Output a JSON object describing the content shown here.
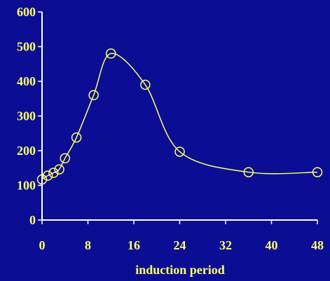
{
  "chart_data": {
    "type": "line",
    "title": "",
    "xlabel": "induction period",
    "ylabel": "",
    "xlim": [
      0,
      48
    ],
    "ylim": [
      0,
      600
    ],
    "x_ticks": [
      0,
      8,
      16,
      24,
      32,
      40,
      48
    ],
    "y_ticks": [
      0,
      100,
      200,
      300,
      400,
      500,
      600
    ],
    "x_tick_labels": [
      "0",
      "8",
      "16",
      "24",
      "32",
      "40",
      "48"
    ],
    "y_tick_labels": [
      "0",
      "100",
      "200",
      "300",
      "400",
      "500",
      "600"
    ],
    "grid": false,
    "legend": "none",
    "series": [
      {
        "x": [
          0,
          1,
          2,
          3,
          4,
          6,
          9,
          12,
          18,
          24,
          36,
          48
        ],
        "values": [
          117,
          128,
          136,
          146,
          178,
          238,
          360,
          480,
          390,
          197,
          138,
          138
        ]
      }
    ],
    "colors": {
      "background": "#0b0e94",
      "axis": "#ffffff",
      "text": "#ffff66",
      "series": "#ffff66"
    }
  }
}
